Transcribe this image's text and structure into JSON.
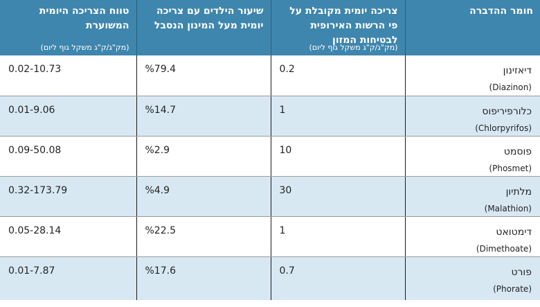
{
  "headers": {
    "substance": "חומר ההדברה",
    "adi": "צריכה יומית מקובלת על פי הרשות האירופית לבטיחות המזון",
    "adi_unit": "(מק\"ג/ק\"ג משקל גוף ליום)",
    "children_pct": "שיעור הילדים עם צריכה יומית מעל המינון הנסבל",
    "range": "טווח הצריכה היומית המשוערת",
    "range_unit": "(מק\"ג/ק\"ג משקל גוף ליום)"
  },
  "rows": [
    {
      "name_he": "דיאזינון",
      "name_en": "(Diazinon)",
      "adi": "0.2",
      "children_pct": "%79.4",
      "range": "0.02-10.73"
    },
    {
      "name_he": "כלורפיריפוס",
      "name_en": "(Chlorpyrifos)",
      "adi": "1",
      "children_pct": "%14.7",
      "range": "0.01-9.06"
    },
    {
      "name_he": "פוסמט",
      "name_en": "(Phosmet)",
      "adi": "10",
      "children_pct": "%2.9",
      "range": "0.09-50.08"
    },
    {
      "name_he": "מלתיון",
      "name_en": "(Malathion)",
      "adi": "30",
      "children_pct": "%4.9",
      "range": "0.32-173.79"
    },
    {
      "name_he": "דימטואט",
      "name_en": "(Dimethoate)",
      "adi": "1",
      "children_pct": "%22.5",
      "range": "0.05-28.14"
    },
    {
      "name_he": "פורט",
      "name_en": "(Phorate)",
      "adi": "0.7",
      "children_pct": "%17.6",
      "range": "0.01-7.87"
    }
  ]
}
